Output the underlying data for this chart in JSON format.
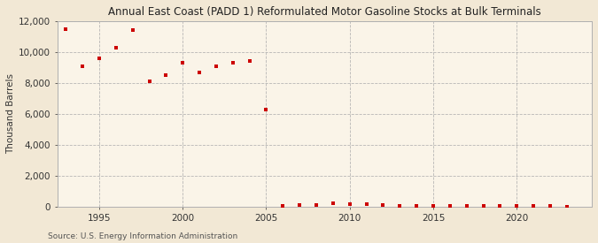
{
  "title": "Annual East Coast (PADD 1) Reformulated Motor Gasoline Stocks at Bulk Terminals",
  "ylabel": "Thousand Barrels",
  "source": "Source: U.S. Energy Information Administration",
  "background_color": "#f2e8d5",
  "plot_background_color": "#faf4e8",
  "marker_color": "#cc0000",
  "years": [
    1993,
    1994,
    1995,
    1996,
    1997,
    1998,
    1999,
    2000,
    2001,
    2002,
    2003,
    2004,
    2005,
    2006,
    2007,
    2008,
    2009,
    2010,
    2011,
    2012,
    2013,
    2014,
    2015,
    2016,
    2017,
    2018,
    2019,
    2020,
    2021,
    2022,
    2023
  ],
  "values": [
    11500,
    9100,
    9600,
    10300,
    11400,
    8100,
    8500,
    9300,
    8700,
    9100,
    9300,
    9400,
    6300,
    80,
    120,
    100,
    200,
    180,
    150,
    130,
    80,
    60,
    30,
    30,
    30,
    30,
    50,
    30,
    30,
    30,
    15
  ],
  "ylim": [
    0,
    12000
  ],
  "yticks": [
    0,
    2000,
    4000,
    6000,
    8000,
    10000,
    12000
  ],
  "xlim_min": 1992.5,
  "xlim_max": 2024.5,
  "xticks": [
    1995,
    2000,
    2005,
    2010,
    2015,
    2020
  ],
  "title_fontsize": 8.5,
  "axis_fontsize": 7.5,
  "source_fontsize": 6.5,
  "marker_size": 10
}
